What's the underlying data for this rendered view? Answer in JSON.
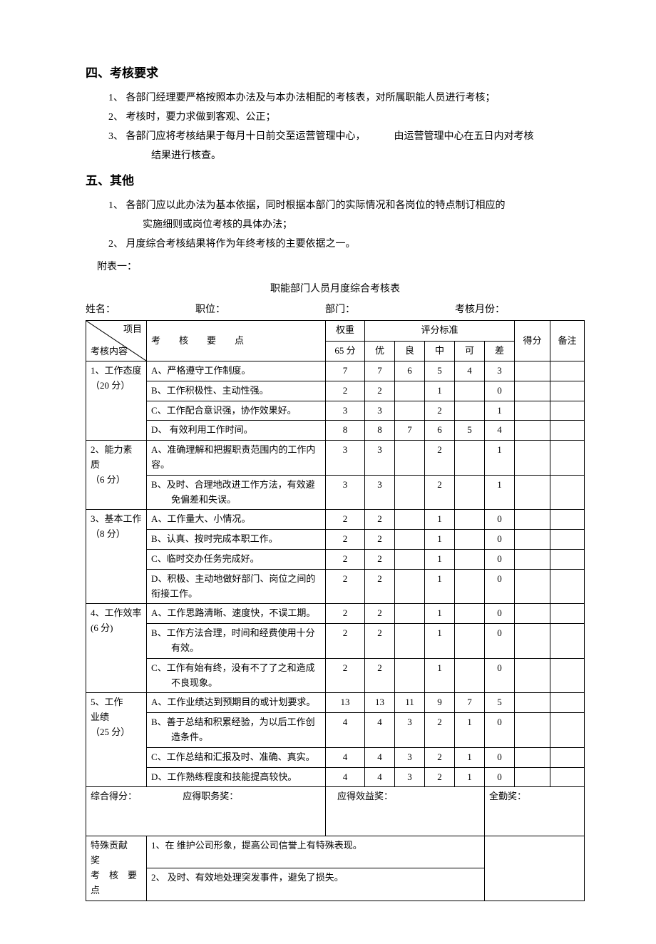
{
  "sections": {
    "s4": {
      "title": "四、考核要求",
      "items": [
        "1、 各部门经理要严格按照本办法及与本办法相配的考核表，对所属职能人员进行考核；",
        "2、 考核时，要力求做到客观、公正；",
        "3、 各部门应将考核结果于每月十日前交至运营管理中心，",
        "由运营管理中心在五日内对考核"
      ],
      "item3_sub": "结果进行核查。"
    },
    "s5": {
      "title": "五、其他",
      "items": [
        "1、 各部门应以此办法为基本依据，同时根据本部门的实际情况和各岗位的特点制订相应的",
        "实施细则或岗位考核的具体办法；",
        "2、 月度综合考核结果将作为年终考核的主要依据之一。"
      ]
    }
  },
  "attachment_label": "附表一：",
  "table_title": "职能部门人员月度综合考核表",
  "info": {
    "name_label": "姓名：",
    "position_label": "职位：",
    "dept_label": "部门：",
    "month_label": "考核月份："
  },
  "head": {
    "diag_top": "项目",
    "diag_bottom": "考核内容",
    "points_label": "考　　核　　要　　点",
    "weight_label": "权重",
    "weight_total": "65 分",
    "std_label": "评分标准",
    "std_cols": [
      "优",
      "良",
      "中",
      "可",
      "差"
    ],
    "score_label": "得分",
    "remark_label": "备注"
  },
  "groups": [
    {
      "name": "1、工作态度\n（20 分）",
      "rows": [
        {
          "point": "A、严格遵守工作制度。",
          "weight": "7",
          "scores": [
            "7",
            "6",
            "5",
            "4",
            "3"
          ]
        },
        {
          "point": "B、工作积极性、主动性强。",
          "weight": "2",
          "scores": [
            "2",
            "",
            "1",
            "",
            "0"
          ]
        },
        {
          "point": "C、工作配合意识强，协作效果好。",
          "weight": "3",
          "scores": [
            "3",
            "",
            "2",
            "",
            "1"
          ]
        },
        {
          "point": "D、 有效利用工作时间。",
          "weight": "8",
          "scores": [
            "8",
            "7",
            "6",
            "5",
            "4"
          ]
        }
      ]
    },
    {
      "name": "2、能力素\n质\n（6 分）",
      "rows": [
        {
          "point": "A、准确理解和把握职责范围内的工作内容。",
          "weight": "3",
          "scores": [
            "3",
            "",
            "2",
            "",
            "1"
          ]
        },
        {
          "point": "B、及时、合理地改进工作方法，有效避免偏差和失误。",
          "weight": "3",
          "scores": [
            "3",
            "",
            "2",
            "",
            "1"
          ],
          "indent": true
        }
      ]
    },
    {
      "name": "3、基本工作\n（8 分）",
      "rows": [
        {
          "point": "A、工作量大、小情况。",
          "weight": "2",
          "scores": [
            "2",
            "",
            "1",
            "",
            "0"
          ]
        },
        {
          "point": "B、认真、按时完成本职工作。",
          "weight": "2",
          "scores": [
            "2",
            "",
            "1",
            "",
            "0"
          ]
        },
        {
          "point": "C、临时交办任务完成好。",
          "weight": "2",
          "scores": [
            "2",
            "",
            "1",
            "",
            "0"
          ]
        },
        {
          "point": "D、积极、主动地做好部门、岗位之间的衔接工作。",
          "weight": "2",
          "scores": [
            "2",
            "",
            "1",
            "",
            "0"
          ]
        }
      ]
    },
    {
      "name": "4、工作效率\n(6 分)",
      "rows": [
        {
          "point": "A、工作思路清晰、速度快，不误工期。",
          "weight": "2",
          "scores": [
            "2",
            "",
            "1",
            "",
            "0"
          ]
        },
        {
          "point": "B、工作方法合理，时间和经费使用十分有效。",
          "weight": "2",
          "scores": [
            "2",
            "",
            "1",
            "",
            "0"
          ],
          "indent": true
        },
        {
          "point": "C、工作有始有终，没有不了了之和造成不良现象。",
          "weight": "2",
          "scores": [
            "2",
            "",
            "1",
            "",
            "0"
          ],
          "indent": true
        }
      ]
    },
    {
      "name": "5、工作\n业绩\n（25 分）",
      "rows": [
        {
          "point": "A、工作业绩达到预期目的或计划要求。",
          "weight": "13",
          "scores": [
            "13",
            "11",
            "9",
            "7",
            "5"
          ]
        },
        {
          "point": "B、善于总结和积累经验，为以后工作创造条件。",
          "weight": "4",
          "scores": [
            "4",
            "3",
            "2",
            "1",
            "0"
          ],
          "indent": true
        },
        {
          "point": "C、工作总结和汇报及时、准确、真实。",
          "weight": "4",
          "scores": [
            "4",
            "3",
            "2",
            "1",
            "0"
          ]
        },
        {
          "point": "D、工作熟练程度和技能提高较快。",
          "weight": "4",
          "scores": [
            "4",
            "3",
            "2",
            "1",
            "0"
          ]
        }
      ]
    }
  ],
  "bottom": {
    "total_label": "综合得分：",
    "duty_label": "应得职务奖：",
    "benefit_label": "应得效益奖：",
    "attend_label": "全勤奖："
  },
  "contrib": {
    "label1": "特殊贡献　　奖",
    "label2": "考　核　要　点",
    "p1": "1、在 维护公司形象，提高公司信誉上有特殊表现。",
    "p2": "2、 及时、有效地处理突发事件，避免了损失。"
  },
  "style": {
    "colwidths": {
      "cat": "85px",
      "point": "auto",
      "weight": "55px",
      "score": "42px",
      "getscore": "50px",
      "remark": "48px"
    }
  }
}
